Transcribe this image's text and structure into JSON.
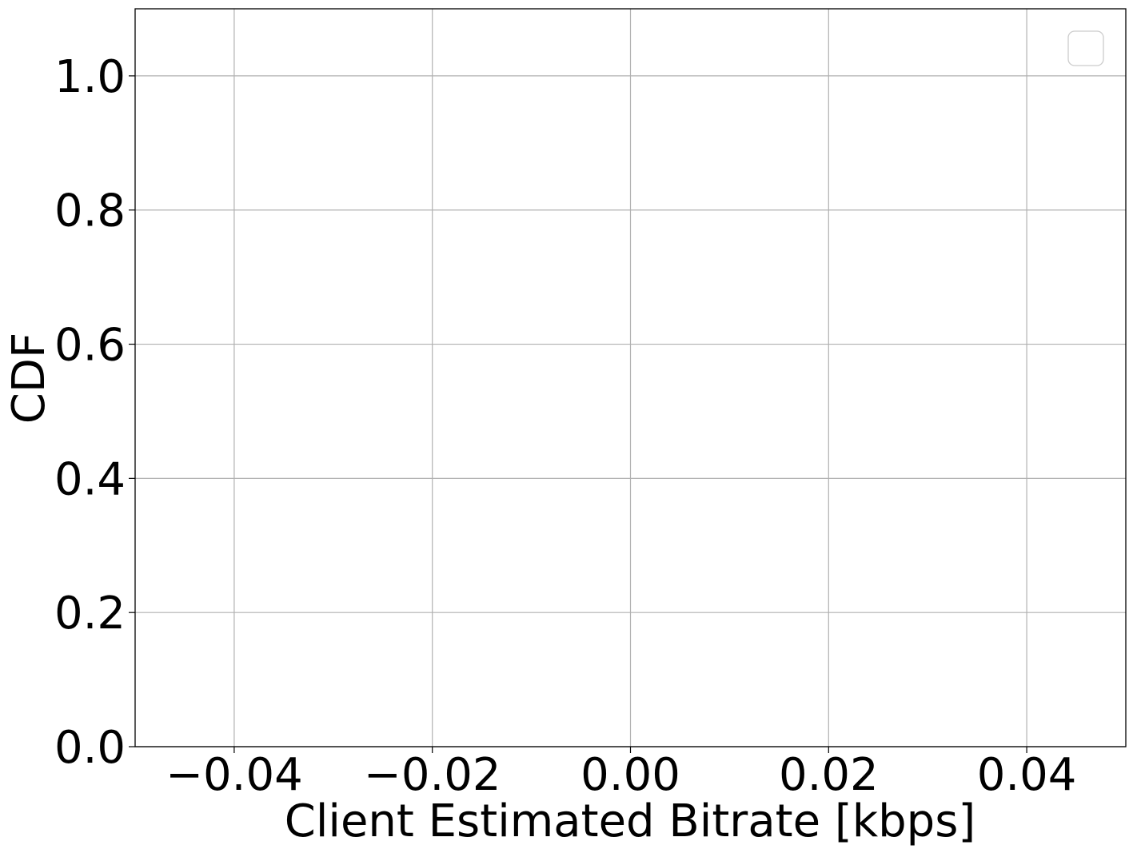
{
  "chart_data": {
    "type": "line",
    "title": "",
    "xlabel": "Client Estimated Bitrate [kbps]",
    "ylabel": "CDF",
    "xlim": [
      -0.05,
      0.05
    ],
    "ylim": [
      0.0,
      1.1
    ],
    "xticks": [
      -0.04,
      -0.02,
      0.0,
      0.02,
      0.04
    ],
    "xtick_labels": [
      "−0.04",
      "−0.02",
      "0.00",
      "0.02",
      "0.04"
    ],
    "yticks": [
      0.0,
      0.2,
      0.4,
      0.6,
      0.8,
      1.0
    ],
    "ytick_labels": [
      "0.0",
      "0.2",
      "0.4",
      "0.6",
      "0.8",
      "1.0"
    ],
    "grid": true,
    "legend": {
      "placement": "top-right",
      "entries": []
    },
    "series": []
  },
  "colors": {
    "background": "#ffffff",
    "grid": "#b0b0b0",
    "axes": "#000000",
    "legend_border": "#cccccc"
  }
}
